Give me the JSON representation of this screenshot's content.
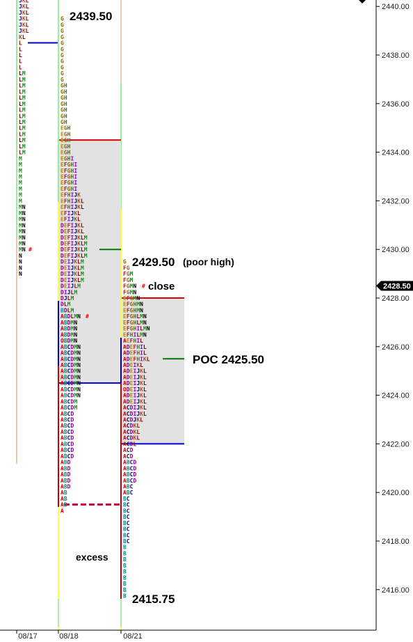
{
  "chart_data": {
    "type": "tpo_market_profile",
    "tick_size": 0.25,
    "ylim": [
      2414.25,
      2440.25
    ],
    "y_ticks": [
      2416,
      2418,
      2420,
      2422,
      2424,
      2426,
      2428,
      2430,
      2432,
      2434,
      2436,
      2438,
      2440
    ],
    "y_tick_labels": [
      "2416.00",
      "2418.00",
      "2420.00",
      "2422.00",
      "2424.00",
      "2426.00",
      "2428.00",
      "2430.00",
      "2432.00",
      "2434.00",
      "2436.00",
      "2438.00",
      "2440.00"
    ],
    "last_price": "2428.50",
    "letter_colors": {
      "A": "#cc0000",
      "B": "#008b8b",
      "C": "#00008b",
      "D": "#8b008b",
      "E": "#b8860b",
      "F": "#b22222",
      "G": "#8b6508",
      "H": "#556b2f",
      "I": "#9400d3",
      "J": "#000080",
      "K": "#a0522d",
      "L": "#8b0000",
      "M": "#228b22",
      "N": "#000000",
      "O": "#ff0000"
    },
    "sessions": [
      {
        "date": "08/17",
        "top_price": 2440.5,
        "rows": [
          "JKL",
          "JKL",
          "JKL",
          "JKL",
          "JKL",
          "JKL",
          "JKL",
          "KL",
          "L",
          "L",
          "L",
          "L",
          "L",
          "LM",
          "LM",
          "LM",
          "LM",
          "LM",
          "LM",
          "LM",
          "LM",
          "LM",
          "LM",
          "LM",
          "LM",
          "LM",
          "LM",
          "M",
          "M",
          "M",
          "M",
          "M",
          "M",
          "M",
          "M",
          "MN",
          "MN",
          "MN",
          "MN",
          "MN",
          "MN",
          "MN",
          "MN",
          "N",
          "N",
          "N",
          "N"
        ],
        "poor_high_marker_row": 40
      },
      {
        "date": "08/18",
        "top_price": 2439.5,
        "rows": [
          "G",
          "G",
          "G",
          "G",
          "G",
          "G",
          "G",
          "G",
          "G",
          "G",
          "G",
          "GH",
          "GH",
          "GH",
          "GH",
          "GH",
          "GH",
          "GH",
          "EGH",
          "EGH",
          "EGH",
          "EGH",
          "EGH",
          "EGHI",
          "EFGHI",
          "EFGHI",
          "EFGHI",
          "EFGHI",
          "EFGHI",
          "EFHIJK",
          "EFHIJKL",
          "EFHIJKL",
          "EFIJKL",
          "EFIJKL",
          "DEFIJKL",
          "DEFIJKL",
          "DEFIJKLM",
          "DEFIJKLM",
          "DEFIJKLM",
          "DEFIJKLM",
          "DEIJKLM",
          "DEIJKLM",
          "DEIJKLM",
          "DEIJKLM",
          "DEIJLM",
          "DIJLM",
          "DJLM",
          "DLM",
          "BDLM",
          "ABDLMN",
          "ABDMN",
          "ABDMN",
          "ABDMN",
          "OBDMN",
          "ABCDMN",
          "ABCDMN",
          "ABCDMN",
          "ABCDMN",
          "ABCDMN",
          "ABCDMN",
          "ABCDMN",
          "ABCDMN",
          "ABCDMN",
          "ABCDM",
          "ABCDM",
          "ABCD",
          "ABCD",
          "ABCD",
          "ABCD",
          "ABCD",
          "ABCD",
          "ABCD",
          "ABCD",
          "ABD",
          "ABD",
          "ABD",
          "ABD",
          "ABD",
          "AB",
          "AB",
          "AB",
          "A"
        ],
        "value_area": [
          2424.5,
          2434.5
        ],
        "poc": 2430.0,
        "range_top": 2439.5,
        "range_bottom": 2419.5
      },
      {
        "date": "08/21",
        "top_price": 2429.5,
        "rows": [
          "G",
          "FG",
          "FGM",
          "FGM",
          "FGMN",
          "FGMN",
          "EFGMN",
          "EFGHMN",
          "EFGHMN",
          "EFGHLMN",
          "EFGHLMN",
          "EFGHILMN",
          "EFHILMN",
          "AEFHIL",
          "ADEFHIL",
          "ADEFHIL",
          "ADEFHIKL",
          "ADEIKL",
          "ADEIJKL",
          "ADEIJKL",
          "ADEIJKL",
          "ODEIJKL",
          "ADEIJKL",
          "ADEIJKL",
          "ACDIJKL",
          "ACDIJKL",
          "ACDJKL",
          "ACDKL",
          "ACDKL",
          "ACDKL",
          "ACDL",
          "ACD",
          "ACD",
          "ABCD",
          "ABCD",
          "ABCD",
          "ABCD",
          "ABC",
          "ABC",
          "BC",
          "BC",
          "BC",
          "BC",
          "BC",
          "BC",
          "BC",
          "BC",
          "B",
          "B",
          "B",
          "B",
          "B",
          "B",
          "B",
          "B",
          "B"
        ],
        "value_area": [
          2422.0,
          2428.0
        ],
        "poc": 2425.5,
        "close": 2428.25,
        "range_top": 2429.5,
        "range_bottom": 2415.75
      }
    ],
    "annotations": {
      "high_0818": "2439.50",
      "high_0821": "2429.50",
      "poor_high": "(poor high)",
      "close": "close",
      "poc": "POC 2425.50",
      "excess": "excess",
      "low_0821": "2415.75"
    }
  }
}
